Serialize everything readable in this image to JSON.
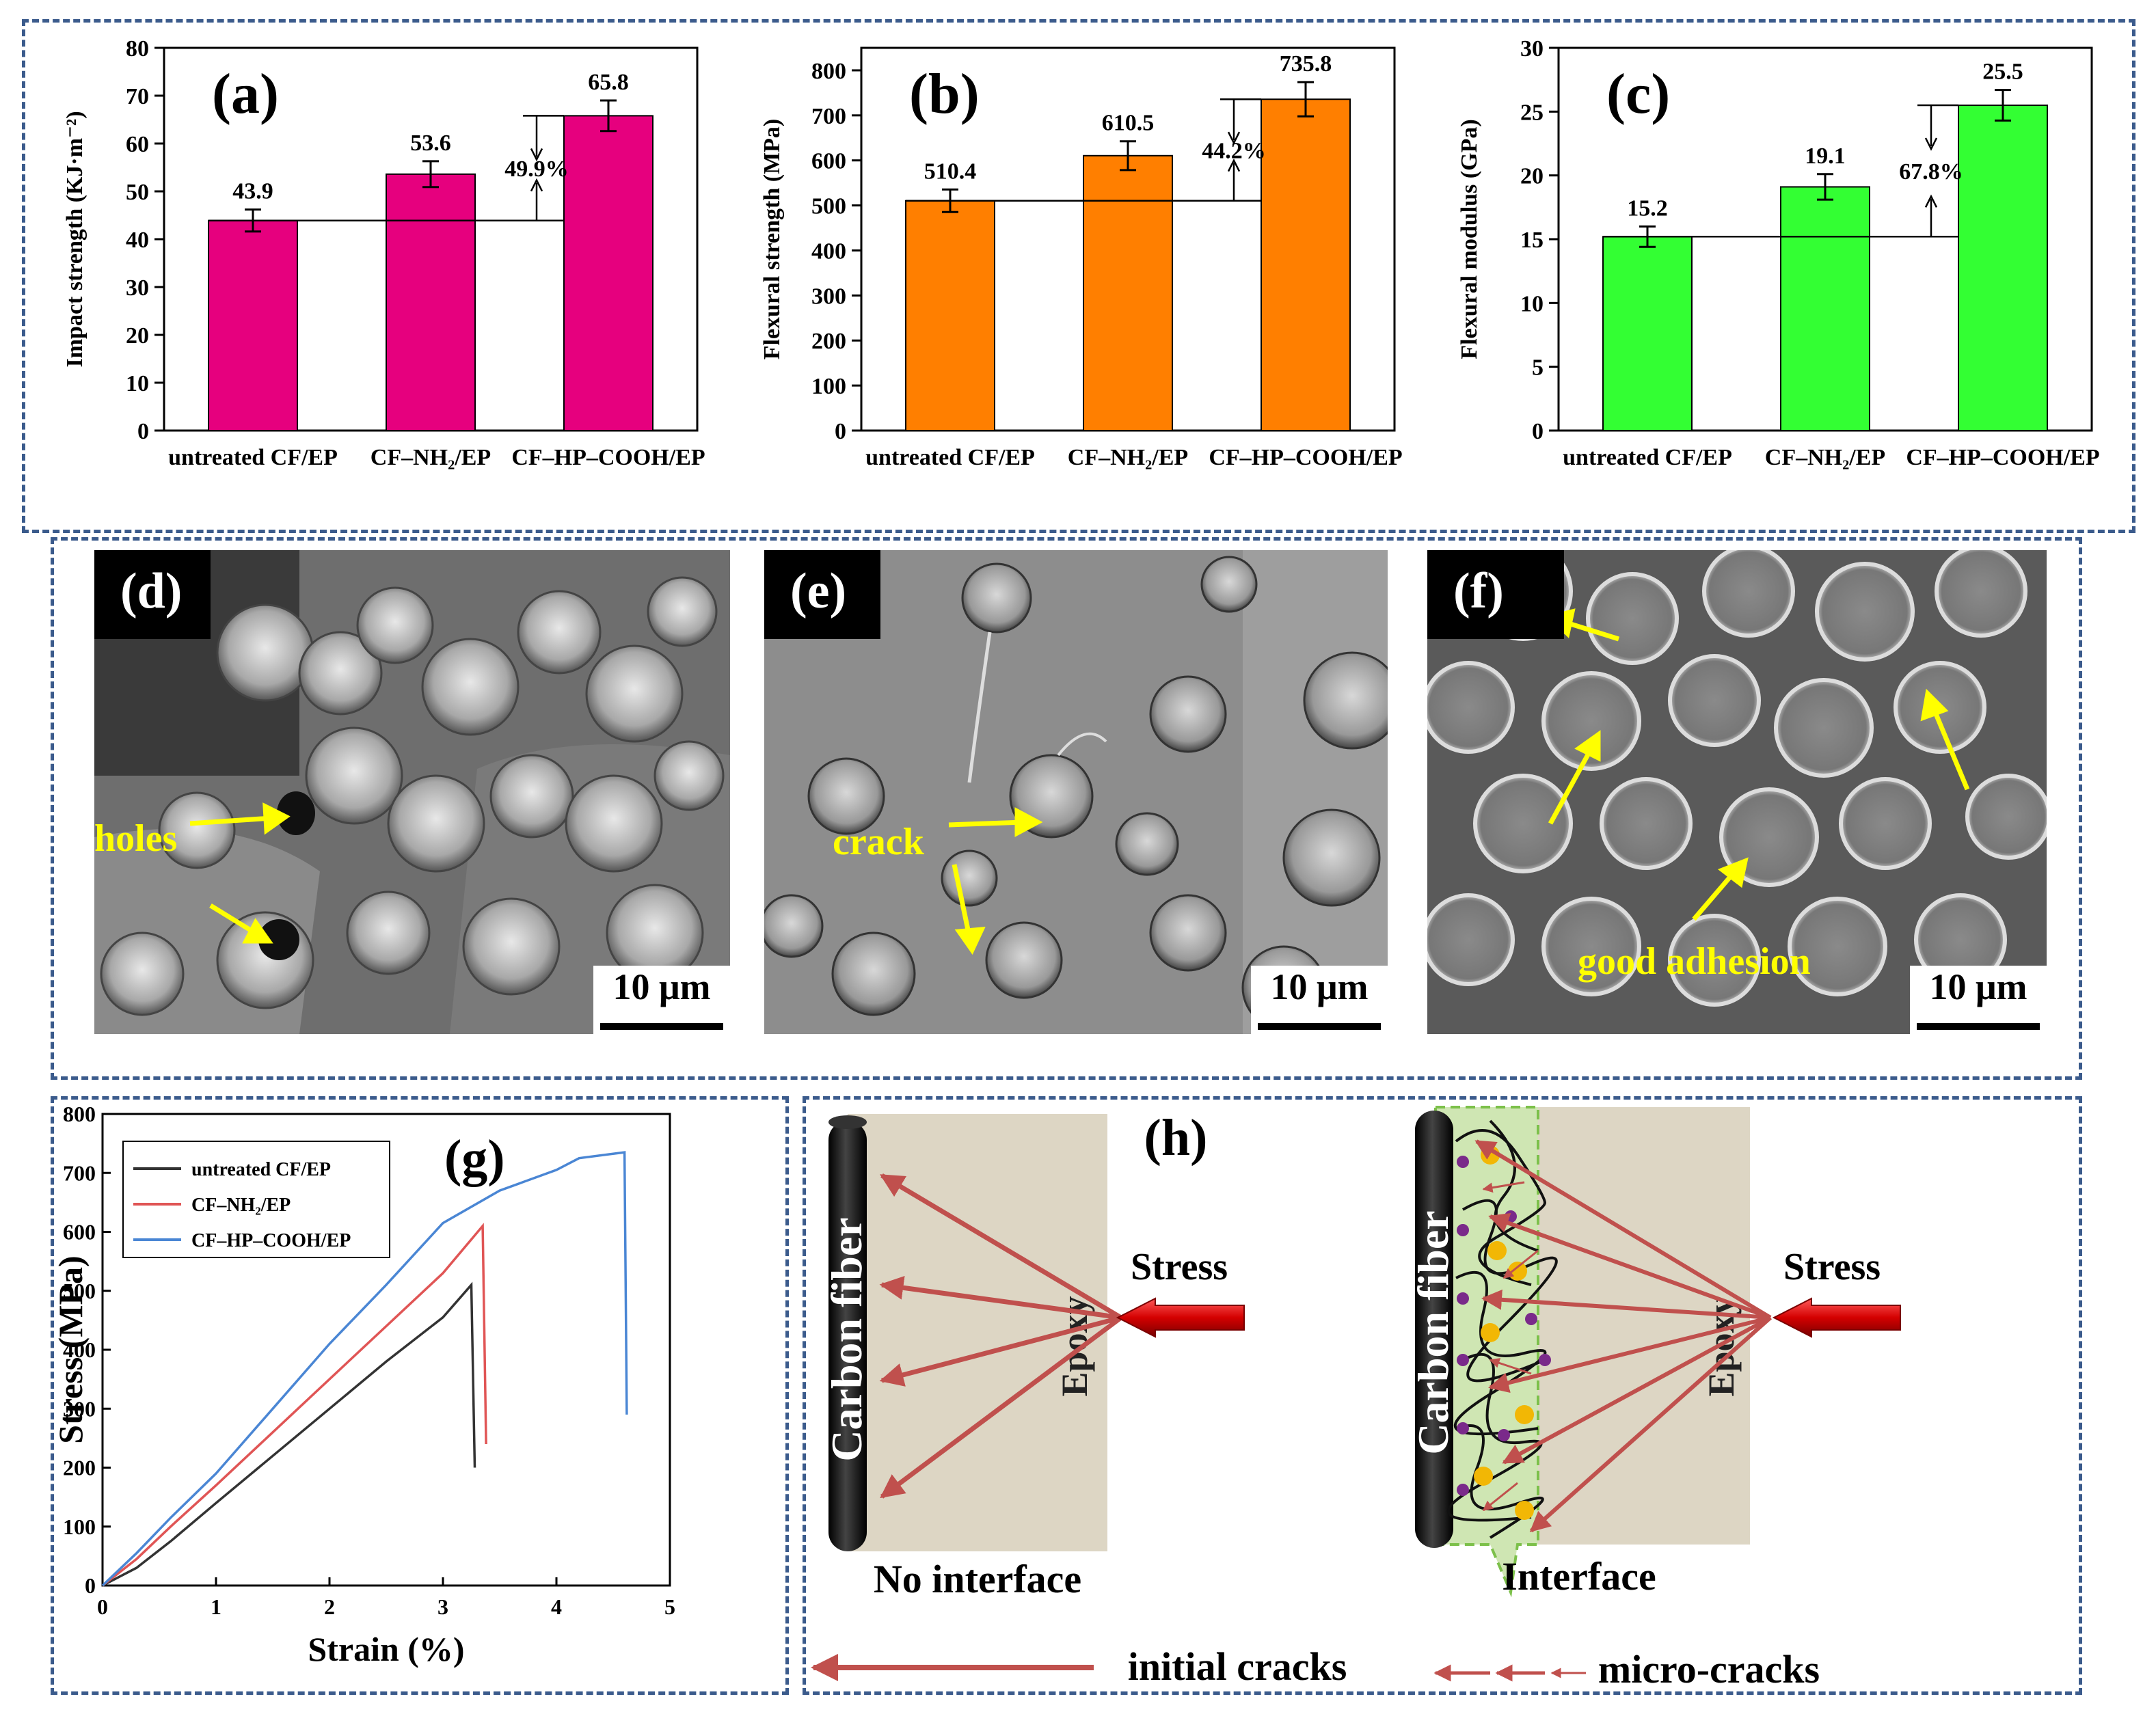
{
  "chart_data": [
    {
      "panel": "(a)",
      "type": "bar",
      "categories": [
        "untreated CF/EP",
        "CF–NH₂/EP",
        "CF–HP–COOH/EP"
      ],
      "values": [
        43.9,
        53.6,
        65.8
      ],
      "errors": [
        2.3,
        2.7,
        3.2
      ],
      "value_labels": [
        "43.9",
        "53.6",
        "65.8"
      ],
      "ylabel": "Impact strength (KJ·m⁻²)",
      "ylim": [
        0,
        80
      ],
      "yticks": [
        0,
        10,
        20,
        30,
        40,
        50,
        60,
        70,
        80
      ],
      "improvement": "49.9%",
      "color": "#e6007e"
    },
    {
      "panel": "(b)",
      "type": "bar",
      "categories": [
        "untreated CF/EP",
        "CF–NH₂/EP",
        "CF–HP–COOH/EP"
      ],
      "values": [
        510.4,
        610.5,
        735.8
      ],
      "errors": [
        25,
        32,
        38
      ],
      "value_labels": [
        "510.4",
        "610.5",
        "735.8"
      ],
      "ylabel": "Flexural strength (MPa)",
      "ylim": [
        0,
        850
      ],
      "yticks": [
        0,
        100,
        200,
        300,
        400,
        500,
        600,
        700,
        800
      ],
      "improvement": "44.2%",
      "color": "#ff7f00"
    },
    {
      "panel": "(c)",
      "type": "bar",
      "categories": [
        "untreated CF/EP",
        "CF–NH₂/EP",
        "CF–HP–COOH/EP"
      ],
      "values": [
        15.2,
        19.1,
        25.5
      ],
      "errors": [
        0.8,
        1.0,
        1.2
      ],
      "value_labels": [
        "15.2",
        "19.1",
        "25.5"
      ],
      "ylabel": "Flexural modulus (GPa)",
      "ylim": [
        0,
        30
      ],
      "yticks": [
        0,
        5,
        10,
        15,
        20,
        25,
        30
      ],
      "improvement": "67.8%",
      "color": "#33ff33"
    },
    {
      "panel": "(g)",
      "type": "line",
      "xlabel": "Strain (%)",
      "ylabel": "Stress (MPa)",
      "xlim": [
        0,
        5
      ],
      "ylim": [
        0,
        800
      ],
      "xticks": [
        0,
        1,
        2,
        3,
        4,
        5
      ],
      "yticks": [
        0,
        100,
        200,
        300,
        400,
        500,
        600,
        700,
        800
      ],
      "series": [
        {
          "name": "untreated CF/EP",
          "color": "#333333",
          "x": [
            0,
            0.3,
            0.6,
            1.0,
            1.5,
            2.0,
            2.5,
            3.0,
            3.25,
            3.28
          ],
          "y": [
            0,
            30,
            75,
            140,
            220,
            300,
            380,
            455,
            510,
            200
          ]
        },
        {
          "name": "CF–NH₂/EP",
          "color": "#e05555",
          "x": [
            0,
            0.3,
            0.6,
            1.0,
            1.5,
            2.0,
            2.5,
            3.0,
            3.35,
            3.38
          ],
          "y": [
            0,
            45,
            100,
            170,
            260,
            350,
            440,
            530,
            610,
            240
          ]
        },
        {
          "name": "CF–HP–COOH/EP",
          "color": "#4a86d4",
          "x": [
            0,
            0.3,
            0.6,
            1.0,
            1.5,
            2.0,
            2.5,
            3.0,
            3.5,
            4.0,
            4.2,
            4.6,
            4.62
          ],
          "y": [
            0,
            55,
            115,
            190,
            300,
            410,
            510,
            615,
            670,
            705,
            725,
            735,
            290
          ]
        }
      ]
    }
  ],
  "sem_panels": [
    {
      "label": "(d)",
      "scale": "10 μm",
      "annotation": "holes"
    },
    {
      "label": "(e)",
      "scale": "10 μm",
      "annotation": "crack"
    },
    {
      "label": "(f)",
      "scale": "10 μm",
      "annotation": "good adhesion"
    }
  ],
  "schematic": {
    "label": "(h)",
    "carbon_fiber": "Carbon fiber",
    "epoxy": "Epoxy",
    "stress": "Stress",
    "no_interface": "No interface",
    "interface": "Interface",
    "initial_cracks": "initial cracks",
    "micro_cracks": "micro-cracks"
  },
  "colors": {
    "frame": "#3b5b8c",
    "crack_arrow": "#c0504d",
    "epoxy_bg": "#ddd6c4",
    "interface_bg": "#cfe6b3"
  }
}
